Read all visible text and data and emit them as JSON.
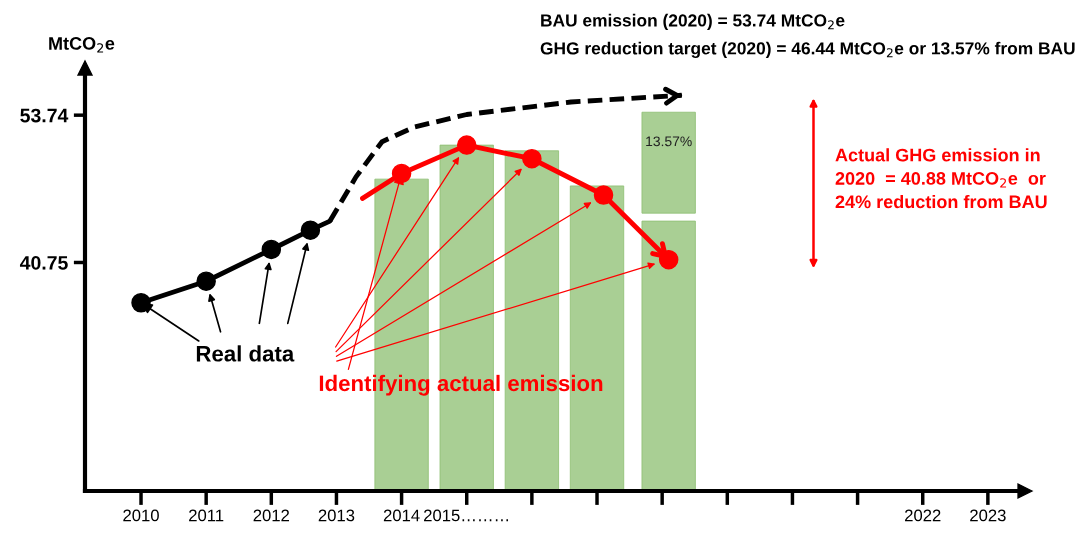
{
  "chart_data": {
    "type": "line",
    "ylabel": "MtCO$_{2}$e",
    "xlim": [
      2009.14,
      2023.57
    ],
    "ylim": [
      20.6,
      57.9
    ],
    "xticks": [
      {
        "value": 2010,
        "label": "2010"
      },
      {
        "value": 2011,
        "label": "2011"
      },
      {
        "value": 2012,
        "label": "2012"
      },
      {
        "value": 2013,
        "label": "2013"
      },
      {
        "value": 2014,
        "label": "2014"
      },
      {
        "value": 2015,
        "label": "2015………"
      },
      {
        "value": 2016,
        "label": null
      },
      {
        "value": 2017,
        "label": null
      },
      {
        "value": 2018,
        "label": null
      },
      {
        "value": 2019,
        "label": null
      },
      {
        "value": 2020,
        "label": null
      },
      {
        "value": 2021,
        "label": null
      },
      {
        "value": 2022,
        "label": "2022"
      },
      {
        "value": 2023,
        "label": "2023"
      }
    ],
    "yticks": [
      40.75,
      53.74
    ],
    "series": [
      {
        "type": "bar",
        "color": "#a9cf94",
        "x": [
          2014.0,
          2015.0,
          2016.0,
          2017.0,
          2018.1
        ],
        "values": [
          48.1,
          51.1,
          50.6,
          47.5,
          44.4
        ]
      },
      {
        "type": "bar",
        "color": "#a9cf94",
        "x": [
          2018.1
        ],
        "base": [
          45.1
        ],
        "values": [
          8.9
        ]
      },
      {
        "color": "#000000",
        "line_style": "solid",
        "x": [
          2010,
          2011.0,
          2012.0,
          2012.6,
          2012.9
        ],
        "values": [
          37.2,
          39.1,
          41.9,
          43.6,
          44.4
        ]
      },
      {
        "type": "scatter",
        "color": "#000000",
        "marker": "circle",
        "x": [
          2010,
          2011.0,
          2012.0,
          2012.6
        ],
        "values": [
          37.2,
          39.1,
          41.9,
          43.6
        ]
      },
      {
        "color": "#000000",
        "line_style": "dashed",
        "x": [
          2012.9,
          2013.3,
          2013.7,
          2014.2,
          2015.0,
          2016.6,
          2018.3
        ],
        "values": [
          44.4,
          48.3,
          51.4,
          52.7,
          53.8,
          54.9,
          55.5
        ]
      },
      {
        "color": "#ff0000",
        "line_style": "solid",
        "x": [
          2013.4,
          2014.0,
          2015.0,
          2016.0,
          2017.1,
          2018.1
        ],
        "values": [
          46.4,
          48.6,
          51.1,
          49.9,
          46.7,
          41.0
        ]
      },
      {
        "type": "scatter",
        "color": "#ff0000",
        "marker": "circle",
        "x": [
          2014.0,
          2015.0,
          2016.0,
          2017.1,
          2018.1
        ],
        "values": [
          48.6,
          51.1,
          49.9,
          46.7,
          41.0
        ]
      }
    ],
    "annotations": [
      "BAU emission (2020) = 53.74 MtCO$_{2}$e",
      "GHG reduction target (2020) = 46.44 MtCO$_{2}$e or 13.57% from BAU",
      {
        "text": "Real data",
        "x": 2010,
        "y": 37.2
      },
      {
        "text": "Identifying actual emission",
        "x": 2014.0,
        "y": 48.6
      },
      "Actual GHG emission in\n2020  = 40.88 MtCO$_{2}$e  or\n24% reduction from BAU",
      "13.57%"
    ],
    "grid": false,
    "legend": false
  }
}
